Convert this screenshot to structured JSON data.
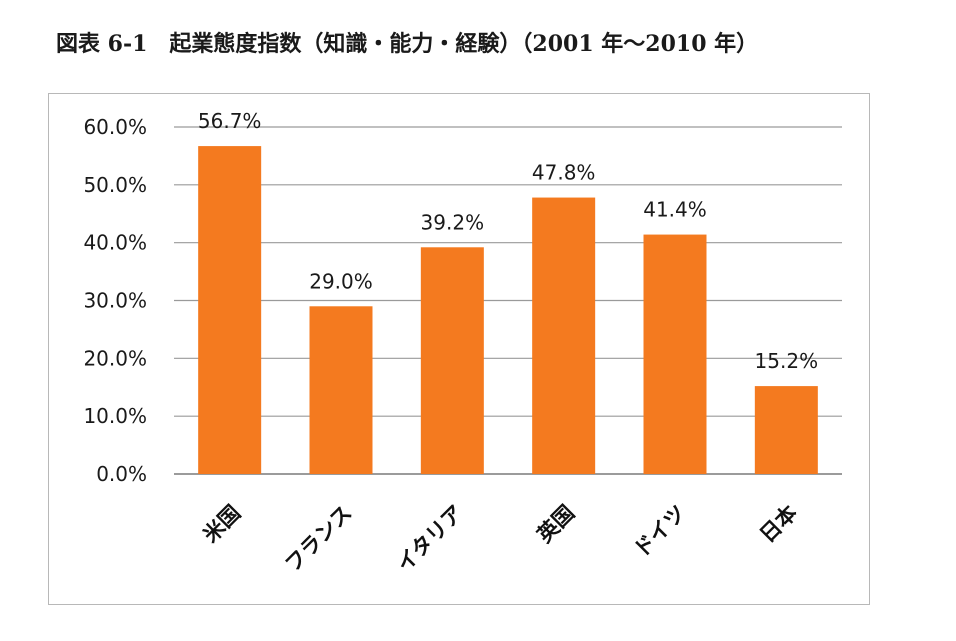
{
  "figure": {
    "title": "図表 6-1　起業態度指数（知識・能力・経験）（2001 年～2010 年）"
  },
  "chart_data": {
    "type": "bar",
    "title": "",
    "xlabel": "",
    "ylabel": "",
    "categories": [
      "米国",
      "フランス",
      "イタリア",
      "英国",
      "ドイツ",
      "日本"
    ],
    "values": [
      56.7,
      29.0,
      39.2,
      47.8,
      41.4,
      15.2
    ],
    "value_labels": [
      "56.7%",
      "29.0%",
      "39.2%",
      "47.8%",
      "41.4%",
      "15.2%"
    ],
    "ylim": [
      0,
      60
    ],
    "yticks": [
      0,
      10,
      20,
      30,
      40,
      50,
      60
    ],
    "ytick_labels": [
      "0.0%",
      "10.0%",
      "20.0%",
      "30.0%",
      "40.0%",
      "50.0%",
      "60.0%"
    ],
    "grid": true,
    "legend": "none",
    "colors": {
      "bar": "#F47A1F",
      "grid": "#9a9a9a",
      "axis": "#7a7a7a"
    }
  }
}
